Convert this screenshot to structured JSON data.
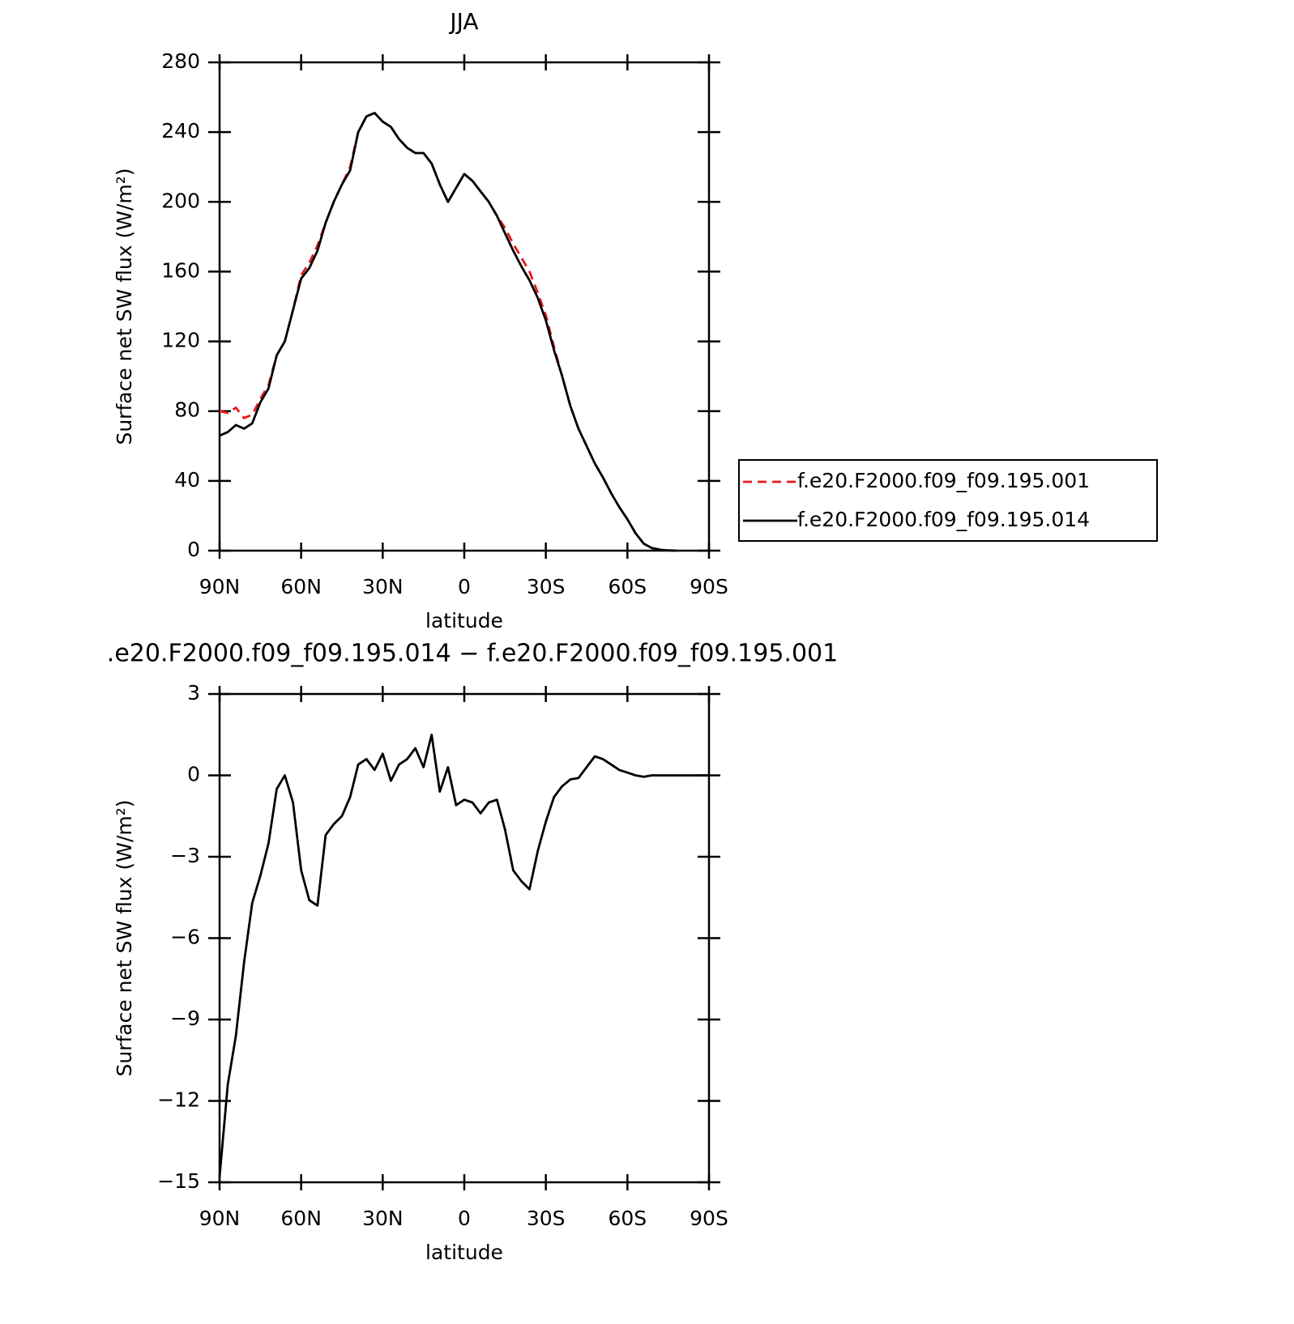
{
  "chart_data": [
    {
      "type": "line",
      "title": "JJA",
      "xlabel": "latitude",
      "ylabel": "Surface net SW flux (W/m²)",
      "x": [
        90,
        87,
        84,
        81,
        78,
        75,
        72,
        69,
        66,
        63,
        60,
        57,
        54,
        51,
        48,
        45,
        42,
        39,
        36,
        33,
        30,
        27,
        24,
        21,
        18,
        15,
        12,
        9,
        6,
        3,
        0,
        -3,
        -6,
        -9,
        -12,
        -15,
        -18,
        -21,
        -24,
        -27,
        -30,
        -33,
        -36,
        -39,
        -42,
        -45,
        -48,
        -51,
        -54,
        -57,
        -60,
        -63,
        -66,
        -69,
        -72,
        -75,
        -78
      ],
      "series": [
        {
          "name": "f.e20.F2000.f09_f09.195.001",
          "color": "#e8191c",
          "dashed": true,
          "values": [
            80,
            79,
            82,
            76,
            78,
            87,
            95,
            112,
            120,
            138,
            158,
            165,
            175,
            188,
            200,
            210,
            220,
            240,
            249,
            251,
            246,
            243,
            236,
            231,
            228,
            228,
            222,
            210,
            200,
            208,
            216,
            212,
            206,
            200,
            192,
            185,
            176,
            168,
            160,
            148,
            135,
            117,
            100,
            83,
            70,
            60,
            50,
            42,
            33,
            25,
            18,
            10,
            4,
            1.5,
            0.5,
            0.2,
            0
          ]
        },
        {
          "name": "f.e20.F2000.f09_f09.195.014",
          "color": "#000000",
          "dashed": false,
          "values": [
            66,
            68,
            72,
            70,
            73,
            85,
            93,
            112,
            120,
            138,
            156,
            162,
            172,
            188,
            200,
            210,
            218,
            240,
            249,
            251,
            246,
            243,
            236,
            231,
            228,
            228,
            222,
            210,
            200,
            208,
            216,
            212,
            206,
            200,
            192,
            182,
            172,
            163,
            155,
            145,
            132,
            115,
            100,
            83,
            70,
            60,
            50,
            42,
            33,
            25,
            18,
            10,
            4,
            1.5,
            0.5,
            0.2,
            0
          ]
        }
      ],
      "xlim": [
        90,
        -90
      ],
      "xticks": [
        {
          "value": 90,
          "label": "90N"
        },
        {
          "value": 60,
          "label": "60N"
        },
        {
          "value": 30,
          "label": "30N"
        },
        0,
        {
          "value": -30,
          "label": "30S"
        },
        {
          "value": -60,
          "label": "60S"
        },
        {
          "value": -90,
          "label": "90S"
        }
      ],
      "ylim": [
        0,
        280
      ],
      "yticks": [
        0,
        40,
        80,
        120,
        160,
        200,
        240,
        280
      ],
      "legend": "right"
    },
    {
      "type": "line",
      "title": ".e20.F2000.f09_f09.195.014 − f.e20.F2000.f09_f09.195.001",
      "xlabel": "latitude",
      "ylabel": "Surface net SW flux (W/m²)",
      "x": [
        90,
        87,
        84,
        81,
        78,
        75,
        72,
        69,
        66,
        63,
        60,
        57,
        54,
        51,
        48,
        45,
        42,
        39,
        36,
        33,
        30,
        27,
        24,
        21,
        18,
        15,
        12,
        9,
        6,
        3,
        0,
        -3,
        -6,
        -9,
        -12,
        -15,
        -18,
        -21,
        -24,
        -27,
        -30,
        -33,
        -36,
        -39,
        -42,
        -45,
        -48,
        -51,
        -54,
        -57,
        -60,
        -63,
        -66,
        -69,
        -72,
        -75,
        -78,
        -81,
        -84,
        -87,
        -90
      ],
      "series": [
        {
          "name": "f.e20.F2000.f09_f09.195.014 − f.e20.F2000.f09_f09.195.001",
          "color": "#000000",
          "dashed": false,
          "values": [
            -14.8,
            -11.4,
            -9.6,
            -6.9,
            -4.7,
            -3.7,
            -2.5,
            -0.5,
            0,
            -1.0,
            -3.5,
            -4.6,
            -4.8,
            -2.2,
            -1.8,
            -1.5,
            -0.8,
            0.4,
            0.6,
            0.2,
            0.8,
            -0.2,
            0.4,
            0.6,
            1.0,
            0.3,
            1.5,
            -0.6,
            0.3,
            -1.1,
            -0.9,
            -1.0,
            -1.4,
            -1.0,
            -0.9,
            -2.0,
            -3.5,
            -3.9,
            -4.2,
            -2.8,
            -1.7,
            -0.8,
            -0.4,
            -0.15,
            -0.1,
            0.3,
            0.7,
            0.6,
            0.4,
            0.2,
            0.1,
            0,
            -0.05,
            0,
            0,
            0,
            0,
            0,
            0,
            0,
            0
          ]
        }
      ],
      "xlim": [
        90,
        -90
      ],
      "xticks": [
        {
          "value": 90,
          "label": "90N"
        },
        {
          "value": 60,
          "label": "60N"
        },
        {
          "value": 30,
          "label": "30N"
        },
        0,
        {
          "value": -30,
          "label": "30S"
        },
        {
          "value": -60,
          "label": "60S"
        },
        {
          "value": -90,
          "label": "90S"
        }
      ],
      "ylim": [
        -15,
        3
      ],
      "yticks": [
        {
          "value": -15,
          "label": "−15"
        },
        {
          "value": -12,
          "label": "−12"
        },
        {
          "value": -9,
          "label": "−9"
        },
        {
          "value": -6,
          "label": "−6"
        },
        {
          "value": -3,
          "label": "−3"
        },
        0,
        3
      ]
    }
  ]
}
